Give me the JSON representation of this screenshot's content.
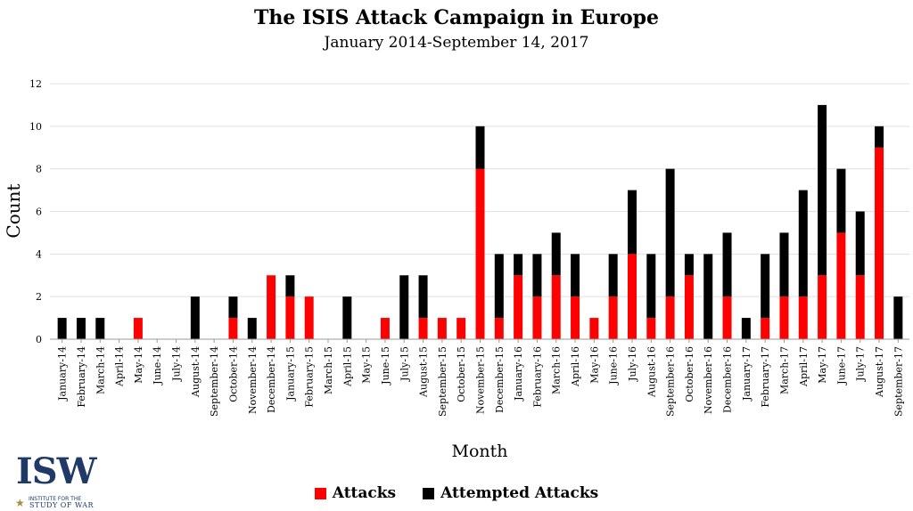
{
  "chart_data": {
    "type": "bar",
    "stacked": true,
    "title": "The ISIS Attack Campaign in Europe",
    "subtitle": "January 2014-September 14, 2017",
    "xlabel": "Month",
    "ylabel": "Count",
    "ylim": [
      0,
      12
    ],
    "yticks": [
      "0",
      "2",
      "4",
      "6",
      "8",
      "10",
      "12"
    ],
    "grid": true,
    "legend_position": "bottom",
    "categories": [
      "January-14",
      "February-14",
      "March-14",
      "April-14",
      "May-14",
      "June-14",
      "July-14",
      "August-14",
      "September-14",
      "October-14",
      "November-14",
      "December-14",
      "January-15",
      "February-15",
      "March-15",
      "April-15",
      "May-15",
      "June-15",
      "July-15",
      "August-15",
      "September-15",
      "October-15",
      "November-15",
      "December-15",
      "January-16",
      "February-16",
      "March-16",
      "April-16",
      "May-16",
      "June-16",
      "July-16",
      "August-16",
      "September-16",
      "October-16",
      "November-16",
      "December-16",
      "January-17",
      "February-17",
      "March-17",
      "April-17",
      "May-17",
      "June-17",
      "July-17",
      "August-17",
      "September-17"
    ],
    "series": [
      {
        "name": "Attacks",
        "color": "#ff0000",
        "values": [
          0,
          0,
          0,
          0,
          1,
          0,
          0,
          0,
          0,
          1,
          0,
          3,
          2,
          2,
          0,
          0,
          0,
          1,
          0,
          1,
          1,
          1,
          8,
          1,
          3,
          2,
          3,
          2,
          1,
          2,
          4,
          1,
          2,
          3,
          0,
          2,
          0,
          1,
          2,
          2,
          3,
          5,
          3,
          9,
          0
        ]
      },
      {
        "name": "Attempted Attacks",
        "color": "#000000",
        "values": [
          1,
          1,
          1,
          0,
          0,
          0,
          0,
          2,
          0,
          1,
          1,
          0,
          1,
          0,
          0,
          2,
          0,
          0,
          3,
          2,
          0,
          0,
          2,
          3,
          1,
          2,
          2,
          2,
          0,
          2,
          3,
          3,
          6,
          1,
          4,
          3,
          1,
          3,
          3,
          5,
          8,
          3,
          3,
          1,
          2
        ]
      }
    ]
  },
  "logo": {
    "letters": "ISW",
    "line1": "INSTITUTE FOR THE",
    "line2": "STUDY OF WAR"
  }
}
